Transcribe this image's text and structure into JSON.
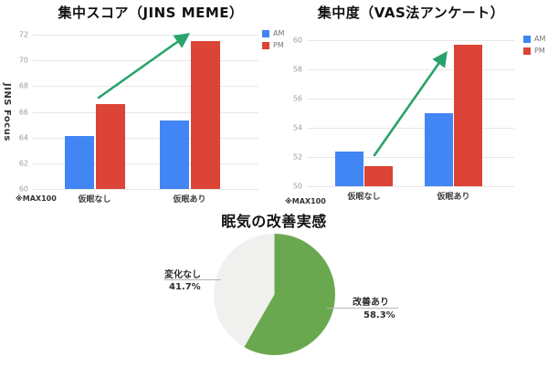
{
  "chart_data": [
    {
      "type": "bar",
      "title": "集中スコア（JINS MEME）",
      "ylabel": "JINS Focus",
      "note": "※MAX100",
      "categories": [
        "仮眠なし",
        "仮眠あり"
      ],
      "series": [
        {
          "name": "AM",
          "color": "#4285f4",
          "values": [
            64.1,
            65.3
          ]
        },
        {
          "name": "PM",
          "color": "#db4437",
          "values": [
            66.6,
            71.5
          ]
        }
      ],
      "ymin": 60,
      "ymax": 72,
      "ticks": [
        60,
        62,
        64,
        66,
        68,
        70,
        72
      ],
      "grid": true,
      "legend_position": "right",
      "annotation": "upward-trend-arrow"
    },
    {
      "type": "bar",
      "title": "集中度（VAS法アンケート）",
      "ylabel": "",
      "note": "※MAX100",
      "categories": [
        "仮眠なし",
        "仮眠あり"
      ],
      "series": [
        {
          "name": "AM",
          "color": "#4285f4",
          "values": [
            52.4,
            55.0
          ]
        },
        {
          "name": "PM",
          "color": "#db4437",
          "values": [
            51.4,
            59.7
          ]
        }
      ],
      "ymin": 50,
      "ymax": 60,
      "ticks": [
        50,
        52,
        54,
        56,
        58,
        60
      ],
      "grid": true,
      "legend_position": "right",
      "annotation": "upward-trend-arrow"
    },
    {
      "type": "pie",
      "title": "眠気の改善実感",
      "slices": [
        {
          "label": "改善あり",
          "pct": 58.3,
          "display_pct": "58.3%",
          "color": "#6aa84f"
        },
        {
          "label": "変化なし",
          "pct": 41.7,
          "display_pct": "41.7%",
          "color": "#f0f0ee"
        }
      ],
      "start_angle": "top",
      "direction": "clockwise"
    }
  ],
  "colors": {
    "arrow": "#29a36b",
    "am_blue": "#4285f4",
    "pm_red": "#db4437",
    "pie_green": "#6aa84f",
    "pie_gray": "#f0f0ee"
  }
}
